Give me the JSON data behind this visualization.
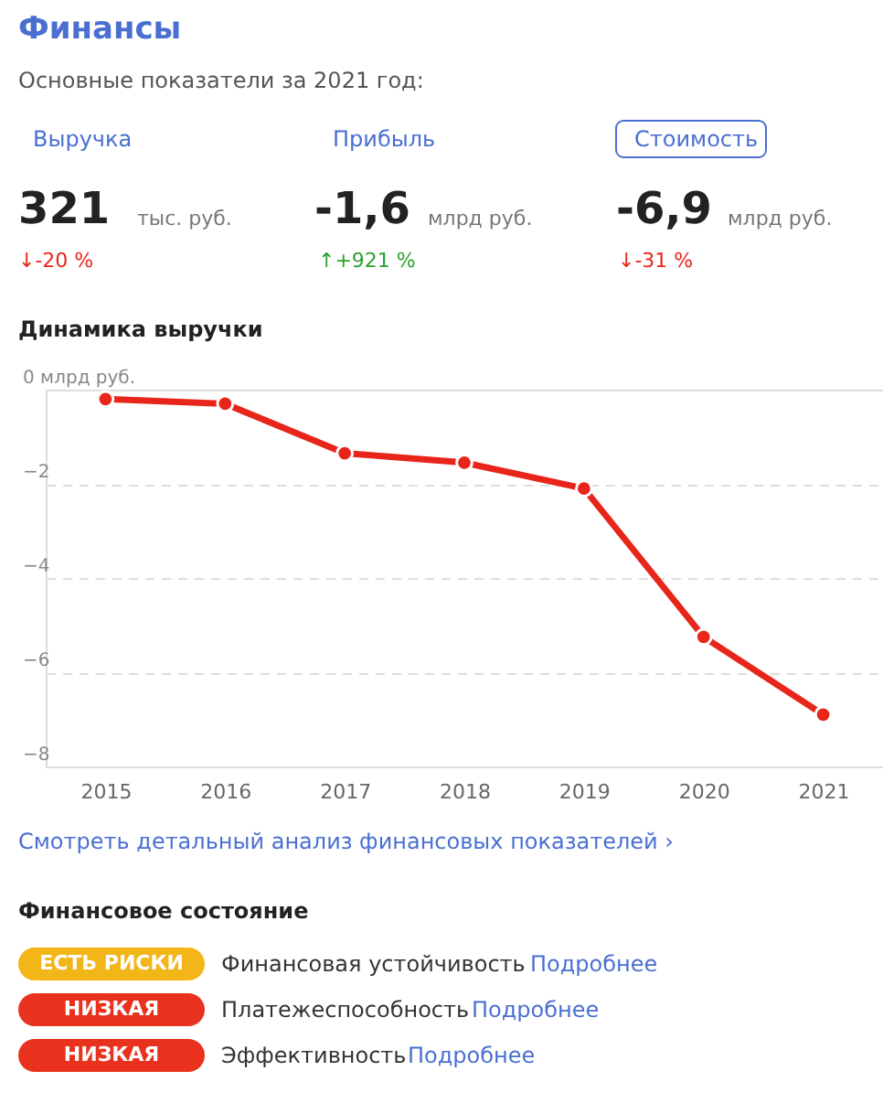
{
  "chart_data": {
    "type": "line",
    "title": "Динамика выручки",
    "categories": [
      "2015",
      "2016",
      "2017",
      "2018",
      "2019",
      "2020",
      "2021"
    ],
    "series": [
      {
        "color": "#e8251a",
        "values": [
          -0.2,
          -0.3,
          -1.35,
          -1.55,
          -2.1,
          -5.25,
          -6.9
        ]
      }
    ],
    "ylim": [
      -8,
      0
    ],
    "yticks": [
      {
        "value": 0,
        "label": "0 млрд руб."
      },
      -2,
      -4,
      -6,
      -8
    ],
    "grid": "y",
    "marker": "circle",
    "line_style": "solid",
    "annotations": [
      "Финансы",
      "Основные показатели за 2021 год:",
      "Выручка",
      "Прибыль",
      "Стоимость",
      "321",
      "тыс. руб.",
      "-1,6",
      "млрд руб.",
      "-6,9",
      "млрд руб.",
      "↓-20 %",
      "↑+921 %",
      "↓-31 %",
      "Смотреть детальный анализ финансовых показателей ›",
      "Финансовое состояние",
      "ЕСТЬ РИСКИ",
      "Финансовая устойчивость",
      "Подробнее",
      "НИЗКАЯ",
      "Платежеспособность",
      "Подробнее",
      "НИЗКАЯ",
      "Эффективность",
      "Подробнее"
    ]
  }
}
